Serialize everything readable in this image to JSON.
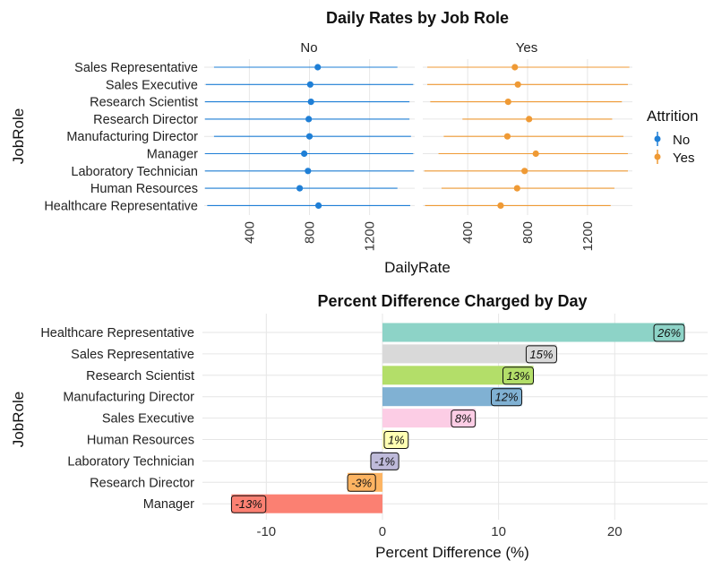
{
  "chart_data": [
    {
      "type": "scatter",
      "title": "Daily Rates by Job Role",
      "xlabel": "DailyRate",
      "ylabel": "JobRole",
      "xlim": [
        100,
        1500
      ],
      "xticks": [
        400,
        800,
        1200
      ],
      "facets": [
        "No",
        "Yes"
      ],
      "legend": {
        "title": "Attrition",
        "position": "right",
        "entries": [
          "No",
          "Yes"
        ]
      },
      "colors": {
        "No": "#1f7fd6",
        "Yes": "#ef9a35"
      },
      "categories": [
        "Sales Representative",
        "Sales Executive",
        "Research Scientist",
        "Research Director",
        "Manufacturing Director",
        "Manager",
        "Laboratory Technician",
        "Human Resources",
        "Healthcare Representative"
      ],
      "series": [
        {
          "name": "No",
          "mean": [
            855,
            805,
            810,
            795,
            800,
            765,
            790,
            735,
            860
          ],
          "min": [
            165,
            110,
            105,
            105,
            165,
            105,
            105,
            105,
            120
          ],
          "max": [
            1385,
            1490,
            1465,
            1465,
            1475,
            1490,
            1495,
            1385,
            1470
          ]
        },
        {
          "name": "Yes",
          "mean": [
            715,
            735,
            670,
            810,
            665,
            855,
            780,
            730,
            620
          ],
          "min": [
            130,
            130,
            150,
            365,
            240,
            205,
            110,
            225,
            115
          ],
          "max": [
            1480,
            1470,
            1430,
            1365,
            1440,
            1470,
            1470,
            1380,
            1355
          ]
        }
      ]
    },
    {
      "type": "bar",
      "orientation": "horizontal",
      "title": "Percent Difference Charged by Day",
      "xlabel": "Percent Difference (%)",
      "ylabel": "JobRole",
      "xlim": [
        -15.5,
        28
      ],
      "xticks": [
        -10,
        0,
        10,
        20
      ],
      "categories": [
        "Healthcare Representative",
        "Sales Representative",
        "Research Scientist",
        "Manufacturing Director",
        "Sales Executive",
        "Human Resources",
        "Laboratory Technician",
        "Research Director",
        "Manager"
      ],
      "values": [
        26,
        15,
        13,
        12,
        8,
        1,
        -1,
        -3,
        -13
      ],
      "labels": [
        "26%",
        "15%",
        "13%",
        "12%",
        "8%",
        "1%",
        "-1%",
        "-3%",
        "-13%"
      ],
      "colors": [
        "#8dd3c7",
        "#d9d9d9",
        "#b3de69",
        "#80b1d3",
        "#fccde5",
        "#ffffb3",
        "#bebada",
        "#fdb462",
        "#fb8072"
      ]
    }
  ]
}
